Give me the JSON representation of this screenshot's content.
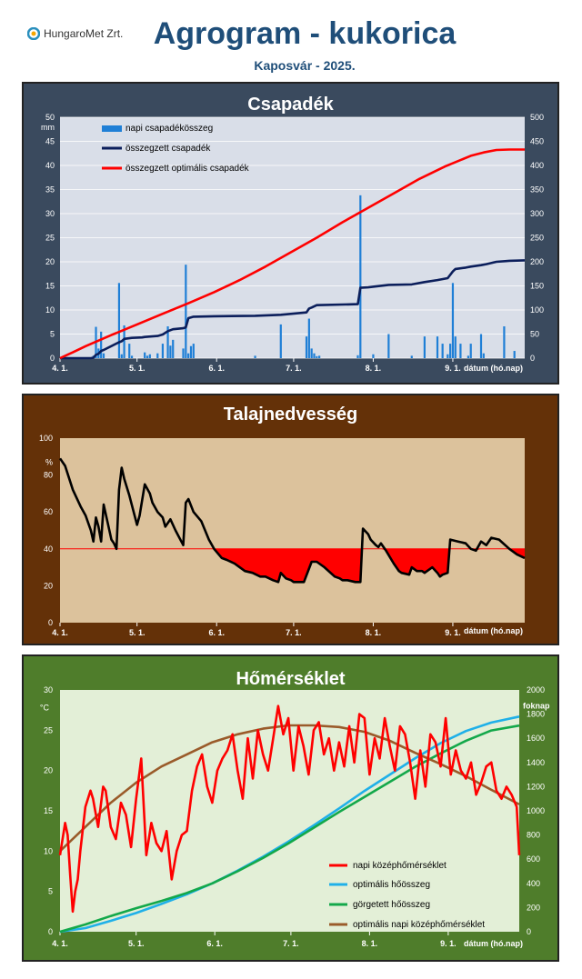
{
  "header": {
    "logo_text": "HungaroMet Zrt.",
    "title": "Agrogram - kukorica",
    "subtitle": "Kaposvár  - 2025."
  },
  "chart_data": [
    {
      "type": "bar+line",
      "title": "Csapadék",
      "yunit_left": "mm",
      "ylim_left": [
        0,
        50
      ],
      "yticks_left": [
        0,
        5,
        10,
        15,
        20,
        25,
        30,
        35,
        40,
        45,
        50
      ],
      "ylim_right": [
        0,
        500
      ],
      "yticks_right": [
        0,
        50,
        100,
        150,
        200,
        250,
        300,
        350,
        400,
        450,
        500
      ],
      "xlim_days": [
        0,
        181
      ],
      "xticks": [
        {
          "day": 0,
          "label": "4. 1."
        },
        {
          "day": 30,
          "label": "5. 1."
        },
        {
          "day": 61,
          "label": "6. 1."
        },
        {
          "day": 91,
          "label": "7. 1."
        },
        {
          "day": 122,
          "label": "8. 1."
        },
        {
          "day": 153,
          "label": "9. 1."
        }
      ],
      "xlabel": "dátum (hó.nap)",
      "legend": [
        "napi csapadékösszeg",
        "összegzett csapadék",
        "összegzett optimális csapadék"
      ],
      "bars": {
        "name": "napi csapadékösszeg",
        "days": [
          13,
          14,
          15,
          16,
          17,
          23,
          24,
          25,
          27,
          28,
          33,
          34,
          35,
          38,
          40,
          42,
          43,
          44,
          48,
          49,
          50,
          51,
          52,
          76,
          86,
          96,
          97,
          98,
          99,
          100,
          101,
          116,
          117,
          122,
          128,
          137,
          142,
          147,
          149,
          151,
          152,
          153,
          154,
          156,
          159,
          160,
          164,
          165,
          173,
          177
        ],
        "values": [
          0.5,
          6.5,
          2.0,
          5.5,
          1.0,
          15.6,
          0.8,
          6.8,
          3.0,
          0.5,
          1.2,
          0.5,
          0.8,
          1.0,
          3.0,
          6.6,
          2.6,
          3.8,
          2.0,
          19.4,
          1.0,
          2.5,
          3.0,
          0.5,
          7.0,
          4.5,
          8.2,
          2.0,
          1.0,
          0.4,
          0.5,
          0.6,
          33.8,
          0.8,
          5.0,
          0.5,
          4.5,
          4.5,
          3.0,
          0.8,
          3.0,
          15.6,
          4.5,
          3.0,
          0.5,
          3.0,
          5.0,
          1.0,
          6.6,
          1.5
        ]
      },
      "series": [
        {
          "name": "összegzett csapadék",
          "axis": "right",
          "color": "#0b1e5b",
          "days": [
            0,
            12,
            13,
            14,
            15,
            16,
            17,
            23,
            24,
            25,
            28,
            32,
            33,
            38,
            40,
            42,
            44,
            48,
            49,
            50,
            52,
            60,
            76,
            86,
            96,
            97,
            98,
            100,
            116,
            117,
            120,
            128,
            137,
            142,
            147,
            151,
            153,
            154,
            158,
            160,
            164,
            166,
            170,
            175,
            181
          ],
          "values": [
            0,
            0,
            1,
            7,
            9,
            15,
            17,
            33,
            35,
            40,
            42,
            43,
            44,
            46,
            49,
            56,
            60,
            62,
            64,
            83,
            86,
            87,
            88,
            90,
            95,
            103,
            105,
            110,
            112,
            146,
            147,
            152,
            153,
            158,
            162,
            166,
            180,
            185,
            188,
            190,
            193,
            195,
            200,
            202,
            203
          ]
        },
        {
          "name": "összegzett optimális csapadék",
          "axis": "right",
          "color": "#ff0000",
          "days": [
            0,
            5,
            10,
            20,
            30,
            40,
            50,
            60,
            70,
            80,
            90,
            100,
            110,
            120,
            130,
            140,
            150,
            160,
            165,
            170,
            175,
            181
          ],
          "values": [
            0,
            12,
            25,
            48,
            70,
            92,
            114,
            137,
            162,
            190,
            220,
            250,
            282,
            312,
            342,
            372,
            398,
            420,
            427,
            432,
            433,
            433
          ]
        }
      ]
    },
    {
      "type": "line",
      "title": "Talajnedvesség",
      "yunit": "%",
      "ylim": [
        0,
        100
      ],
      "yticks": [
        0,
        20,
        40,
        60,
        80,
        100
      ],
      "threshold": 40,
      "xlabel": "dátum (hó.nap)",
      "series": [
        {
          "name": "talajnedvesség",
          "color": "#000000",
          "days": [
            0,
            2,
            5,
            8,
            10,
            12,
            13,
            14,
            15,
            16,
            17,
            20,
            21,
            22,
            23,
            24,
            25,
            27,
            30,
            31,
            33,
            35,
            36,
            38,
            40,
            41,
            43,
            45,
            48,
            49,
            50,
            52,
            55,
            58,
            60,
            63,
            65,
            68,
            70,
            72,
            75,
            78,
            80,
            83,
            85,
            86,
            88,
            90,
            91,
            95,
            98,
            100,
            101,
            103,
            107,
            109,
            110,
            112,
            115,
            117,
            118,
            120,
            121,
            123,
            124,
            125,
            127,
            130,
            132,
            133,
            136,
            137,
            139,
            141,
            142,
            145,
            147,
            148,
            149,
            151,
            152,
            155,
            158,
            160,
            162,
            164,
            166,
            168,
            171,
            175,
            178,
            181
          ],
          "values": [
            89,
            85,
            72,
            63,
            58,
            50,
            44,
            57,
            52,
            44,
            64,
            45,
            43,
            40,
            72,
            84,
            78,
            69,
            53,
            58,
            75,
            70,
            65,
            60,
            57,
            52,
            56,
            50,
            42,
            65,
            67,
            60,
            55,
            45,
            40,
            35,
            34,
            32,
            30,
            28,
            27,
            25,
            25,
            23,
            22,
            27,
            24,
            23,
            22,
            22,
            33,
            33,
            32,
            30,
            25,
            24,
            23,
            23,
            22,
            22,
            51,
            48,
            45,
            42,
            41,
            43,
            39,
            32,
            28,
            27,
            26,
            30,
            28,
            28,
            27,
            30,
            27,
            25,
            26,
            27,
            45,
            44,
            43,
            40,
            39,
            44,
            42,
            46,
            45,
            40,
            37,
            35
          ]
        }
      ]
    },
    {
      "type": "line",
      "title": "Hőmérséklet",
      "yunit_left": "°C",
      "ylim_left": [
        0,
        30
      ],
      "yticks_left": [
        0,
        5,
        10,
        15,
        20,
        25,
        30
      ],
      "yunit_right": "foknap",
      "ylim_right": [
        0,
        2000
      ],
      "yticks_right": [
        0,
        200,
        400,
        600,
        800,
        1000,
        1200,
        1400,
        1600,
        1800,
        2000
      ],
      "xlabel": "dátum (hó.nap)",
      "legend": [
        "napi középhőmérséklet",
        "optimális hőösszeg",
        "görgetett hőösszeg",
        "optimális napi középhőmérséklet"
      ],
      "series": [
        {
          "name": "napi középhőmérséklet",
          "axis": "left",
          "color": "#ff0000",
          "days": [
            0,
            2,
            3,
            4,
            5,
            6,
            7,
            8,
            10,
            12,
            13,
            15,
            17,
            18,
            20,
            22,
            24,
            26,
            28,
            30,
            32,
            34,
            36,
            38,
            40,
            42,
            44,
            46,
            48,
            50,
            52,
            54,
            56,
            58,
            60,
            62,
            64,
            66,
            68,
            70,
            72,
            74,
            76,
            78,
            80,
            82,
            84,
            86,
            88,
            90,
            92,
            94,
            96,
            98,
            100,
            102,
            104,
            106,
            108,
            110,
            112,
            114,
            116,
            118,
            120,
            122,
            124,
            126,
            128,
            130,
            132,
            134,
            136,
            138,
            140,
            142,
            144,
            146,
            148,
            150,
            152,
            154,
            156,
            158,
            160,
            162,
            164,
            166,
            168,
            170,
            172,
            174,
            176,
            178,
            180,
            181
          ],
          "values": [
            9.5,
            13.5,
            12.0,
            7.0,
            2.5,
            5.0,
            6.5,
            10.0,
            15.5,
            17.5,
            16.5,
            13.0,
            18.0,
            17.5,
            13.0,
            11.5,
            16.0,
            14.5,
            10.5,
            16.5,
            21.5,
            9.5,
            13.5,
            11.0,
            10.0,
            12.5,
            6.5,
            10.0,
            12.0,
            12.5,
            17.5,
            20.5,
            22.0,
            18.0,
            16.0,
            20.0,
            21.5,
            22.5,
            24.5,
            20.0,
            16.5,
            24.0,
            19.0,
            25.0,
            22.0,
            20.0,
            24.0,
            28.0,
            24.5,
            26.5,
            20.0,
            25.5,
            23.0,
            19.5,
            25.0,
            26.0,
            22.0,
            24.0,
            20.0,
            23.5,
            20.5,
            25.5,
            21.0,
            27.0,
            26.5,
            19.5,
            24.0,
            21.5,
            26.5,
            23.0,
            20.0,
            25.5,
            24.5,
            21.0,
            16.5,
            22.5,
            18.0,
            24.5,
            23.5,
            20.5,
            26.5,
            19.5,
            22.5,
            20.0,
            19.0,
            21.0,
            17.0,
            18.5,
            20.5,
            21.0,
            17.5,
            16.5,
            18.0,
            17.0,
            15.5,
            9.5
          ]
        },
        {
          "name": "optimális hőösszeg",
          "axis": "right",
          "color": "#1fb0e8",
          "days": [
            0,
            10,
            20,
            30,
            40,
            50,
            60,
            70,
            80,
            90,
            100,
            110,
            120,
            130,
            140,
            150,
            160,
            170,
            181
          ],
          "values": [
            0,
            30,
            90,
            155,
            230,
            310,
            400,
            505,
            620,
            745,
            880,
            1020,
            1165,
            1300,
            1435,
            1560,
            1660,
            1730,
            1780
          ]
        },
        {
          "name": "görgetett hőösszeg",
          "axis": "right",
          "color": "#13a84a",
          "days": [
            0,
            10,
            20,
            30,
            40,
            50,
            60,
            70,
            80,
            90,
            100,
            110,
            120,
            130,
            140,
            150,
            160,
            170,
            181
          ],
          "values": [
            0,
            60,
            130,
            195,
            255,
            320,
            400,
            500,
            610,
            730,
            860,
            990,
            1115,
            1240,
            1365,
            1475,
            1580,
            1665,
            1705
          ]
        },
        {
          "name": "optimális napi középhőmérséklet",
          "axis": "left",
          "color": "#9a5b2a",
          "days": [
            0,
            10,
            20,
            30,
            40,
            50,
            60,
            70,
            80,
            90,
            100,
            110,
            120,
            130,
            140,
            150,
            160,
            170,
            181
          ],
          "values": [
            10.0,
            13.0,
            16.0,
            18.5,
            20.5,
            22.0,
            23.5,
            24.5,
            25.2,
            25.6,
            25.6,
            25.4,
            24.8,
            23.7,
            22.2,
            20.8,
            19.3,
            17.6,
            15.8
          ]
        }
      ]
    }
  ]
}
